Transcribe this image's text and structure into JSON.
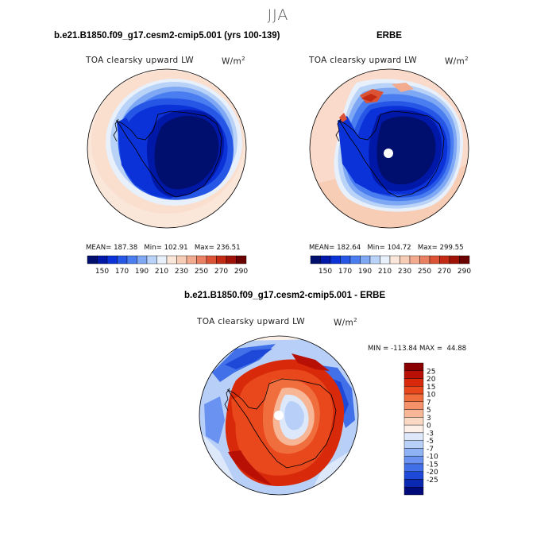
{
  "season": "JJA",
  "colors": {
    "abs_scale": [
      "#000e6e",
      "#0018a8",
      "#0b32d8",
      "#2656e6",
      "#4a7ef0",
      "#7fa8f4",
      "#b8d2f8",
      "#e8f0fb",
      "#fbe6da",
      "#f8cdb6",
      "#f2ab8e",
      "#ea8062",
      "#db5235",
      "#c22a14",
      "#9e1208",
      "#6b0000"
    ],
    "diff_scale": [
      "#8a0000",
      "#b81004",
      "#d82a0a",
      "#e8481c",
      "#f06e3e",
      "#f5926a",
      "#f7b696",
      "#fad8c4",
      "#fdf0e8",
      "#dde8fb",
      "#b8d0f8",
      "#8fb2f5",
      "#6a92f0",
      "#4270e8",
      "#1e48d8",
      "#0b28b0",
      "#000a7a"
    ]
  },
  "panels": [
    {
      "title": "b.e21.B1850.f09_g17.cesm2-cmip5.001 (yrs 100-139)",
      "variable": "TOA clearsky upward LW",
      "units": "W/m",
      "units_sup": "2",
      "stats": {
        "mean_label": "MEAN=",
        "mean": "187.38",
        "min_label": "Min=",
        "min": "102.91",
        "max_label": "Max=",
        "max": "236.51"
      },
      "colorbar_ticks": [
        "150",
        "170",
        "190",
        "210",
        "230",
        "250",
        "270",
        "290"
      ]
    },
    {
      "title": "ERBE",
      "variable": "TOA clearsky upward LW",
      "units": "W/m",
      "units_sup": "2",
      "stats": {
        "mean_label": "MEAN=",
        "mean": "182.64",
        "min_label": "Min=",
        "min": "104.72",
        "max_label": "Max=",
        "max": "299.55"
      },
      "colorbar_ticks": [
        "150",
        "170",
        "190",
        "210",
        "230",
        "250",
        "270",
        "290"
      ]
    }
  ],
  "diff_panel": {
    "title": "b.e21.B1850.f09_g17.cesm2-cmip5.001 - ERBE",
    "variable": "TOA clearsky upward LW",
    "units": "W/m",
    "units_sup": "2",
    "min_label": "MIN =",
    "min": "-113.84",
    "max_label": "MAX =",
    "max": "44.88",
    "colorbar_ticks": [
      "25",
      "20",
      "15",
      "10",
      "7",
      "5",
      "3",
      "0",
      "-3",
      "-5",
      "-7",
      "-10",
      "-15",
      "-20",
      "-25"
    ]
  }
}
